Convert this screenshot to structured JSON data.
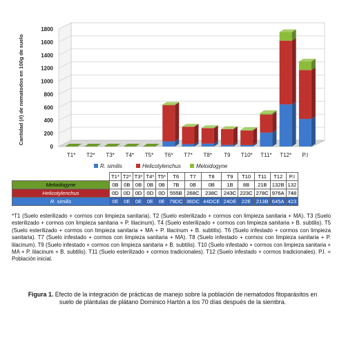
{
  "chart_data": {
    "type": "bar",
    "stacked": true,
    "style": "3d",
    "ylabel": "Cantidad (#) de nematodos en 100g de suelo",
    "ylim": [
      0,
      1800
    ],
    "yticks": [
      0,
      200,
      400,
      600,
      800,
      1000,
      1200,
      1400,
      1600,
      1800
    ],
    "categories": [
      "T1*",
      "T2*",
      "T3*",
      "T4*",
      "T5*",
      "T6*",
      "T7*",
      "T8*",
      "T9",
      "T10*",
      "T11*",
      "T12*",
      "P.I"
    ],
    "series": [
      {
        "name": "R. similis",
        "color": "#3d79cc",
        "values": [
          0,
          0,
          0,
          0,
          0,
          79,
          36,
          44,
          24,
          22,
          213,
          645,
          423
        ]
      },
      {
        "name": "Helicotylenchus",
        "color": "#c0322e",
        "values": [
          0,
          0,
          0,
          0,
          0,
          555,
          268,
          238,
          243,
          223,
          278,
          976,
          748
        ]
      },
      {
        "name": "Meloidogyne",
        "color": "#8cbc3a",
        "values": [
          0,
          0,
          0,
          0,
          0,
          7,
          0,
          0,
          1,
          8,
          21,
          132,
          132
        ]
      }
    ],
    "legend_position": "bottom"
  },
  "table": {
    "headers": [
      "T1*",
      "T2*",
      "T3*",
      "T4*",
      "T5*",
      "T6",
      "T7",
      "T8",
      "T9",
      "T10",
      "T11",
      "T12",
      "P.I"
    ],
    "rows": [
      {
        "label": "Meloidogyne",
        "cells": [
          "0B",
          "0B",
          "0B",
          "0B",
          "0B",
          "7B",
          "0B",
          "0B",
          "1B",
          "8B",
          "21B",
          "132B",
          "132"
        ]
      },
      {
        "label": "Helicotylenchus",
        "cells": [
          "0D",
          "0D",
          "0D",
          "0D",
          "0D",
          "555B",
          "268C",
          "238C",
          "243C",
          "223C",
          "278C",
          "976A",
          "748"
        ]
      },
      {
        "label": "R. similis",
        "cells": [
          "0E",
          "0E",
          "0E",
          "0E",
          "0E",
          "79DC",
          "36DC",
          "44DCE",
          "24DE",
          "22E",
          "213B",
          "645A",
          "423"
        ]
      }
    ]
  },
  "notes": "*T1 (Suelo esterilizado + cormos con limpieza sanitaria). T2 (Suelo esterilizado + cormos con limpieza sanitaria + MA). T3 (Suelo esterilizado + cormos con limpieza sanitaria + P. lilacinum). T4 (Suelo esterilizado + cormos con limpieza sanitaria + B. subtilis). T5 (Suelo esterilizado + cormos con limpieza sanitaria + MA + P. lilacinum + B. subtilis). T6 (Suelo infestado + cormos con limpieza sanitaria). T7 (Suelo infestado + cormos con limpieza sanitaria + MA). T8 (Suelo infestado + cormos con limpieza sanitaria + P. lilacinum). T9 (Suelo infestado + cormos con limpieza sanitaria + B. subtilis). T10 (Suelo infestado + cormos con limpieza sanitaria + MA + P. lilacinum + B. subtilis). T11 (Suelo esterilizado + cormos tradicionales). T12 (Suelo infestado + cormos tradicionales). P.I. = Población inicial.",
  "caption": {
    "label": "Figura 1.",
    "text": " Efecto de la integración de prácticas de manejo sobre la población de nematodos fitoparásitos en suelo de plántulas de plátano Dominico Hartón a los 70 días después de la siembra."
  }
}
